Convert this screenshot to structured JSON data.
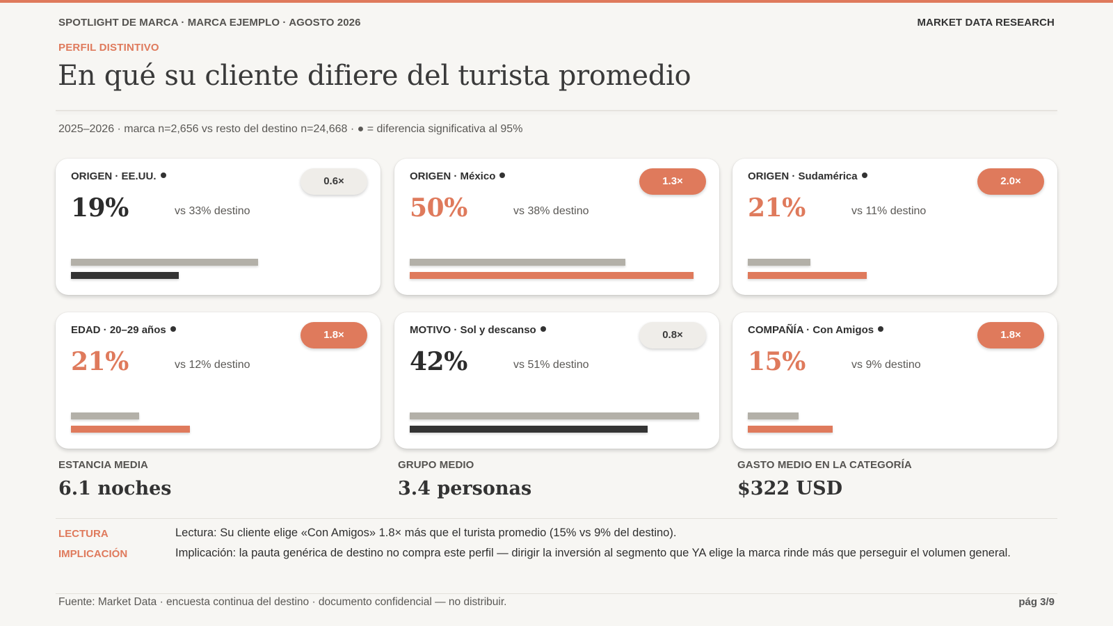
{
  "header": {
    "breadcrumb": "SPOTLIGHT DE MARCA · MARCA EJEMPLO · AGOSTO 2026",
    "brand": "MARKET DATA RESEARCH"
  },
  "eyebrow": "PERFIL DISTINTIVO",
  "title": "En qué su cliente difiere del turista promedio",
  "subtitle": "2025–2026 · marca n=2,656 vs resto del destino n=24,668 · ● = diferencia significativa al 95%",
  "colors": {
    "accent": "#df7a5c",
    "neutral": "#b3b0a8",
    "dark": "#343434"
  },
  "cards": [
    {
      "label": "ORIGEN · EE.UU.",
      "significant": true,
      "pct": "19%",
      "vs": "vs 33% destino",
      "index": "0.6×",
      "brand_value": 19,
      "dest_value": 33,
      "over_index": false
    },
    {
      "label": "ORIGEN · México",
      "significant": true,
      "pct": "50%",
      "vs": "vs 38% destino",
      "index": "1.3×",
      "brand_value": 50,
      "dest_value": 38,
      "over_index": true
    },
    {
      "label": "ORIGEN · Sudamérica",
      "significant": true,
      "pct": "21%",
      "vs": "vs 11% destino",
      "index": "2.0×",
      "brand_value": 21,
      "dest_value": 11,
      "over_index": true
    },
    {
      "label": "EDAD · 20–29 años",
      "significant": true,
      "pct": "21%",
      "vs": "vs 12% destino",
      "index": "1.8×",
      "brand_value": 21,
      "dest_value": 12,
      "over_index": true
    },
    {
      "label": "MOTIVO · Sol y descanso",
      "significant": true,
      "pct": "42%",
      "vs": "vs 51% destino",
      "index": "0.8×",
      "brand_value": 42,
      "dest_value": 51,
      "over_index": false
    },
    {
      "label": "COMPAÑÍA · Con Amigos",
      "significant": true,
      "pct": "15%",
      "vs": "vs 9% destino",
      "index": "1.8×",
      "brand_value": 15,
      "dest_value": 9,
      "over_index": true
    }
  ],
  "metrics": [
    {
      "label": "ESTANCIA MEDIA",
      "value": "6.1 noches"
    },
    {
      "label": "GRUPO MEDIO",
      "value": "3.4 personas"
    },
    {
      "label": "GASTO MEDIO EN LA CATEGORÍA",
      "value": "$322 USD"
    }
  ],
  "notes": {
    "reading_tag": "LECTURA",
    "reading_text": "Lectura: Su cliente elige «Con Amigos» 1.8× más que el turista promedio (15% vs 9% del destino).",
    "implication_tag": "IMPLICACIÓN",
    "implication_text": "Implicación: la pauta genérica de destino no compra este perfil — dirigir la inversión al segmento que YA elige la marca rinde más que perseguir el volumen general."
  },
  "footer": {
    "source": "Fuente: Market Data · encuesta continua del destino · documento confidencial — no distribuir.",
    "page": "pág 3/9"
  }
}
